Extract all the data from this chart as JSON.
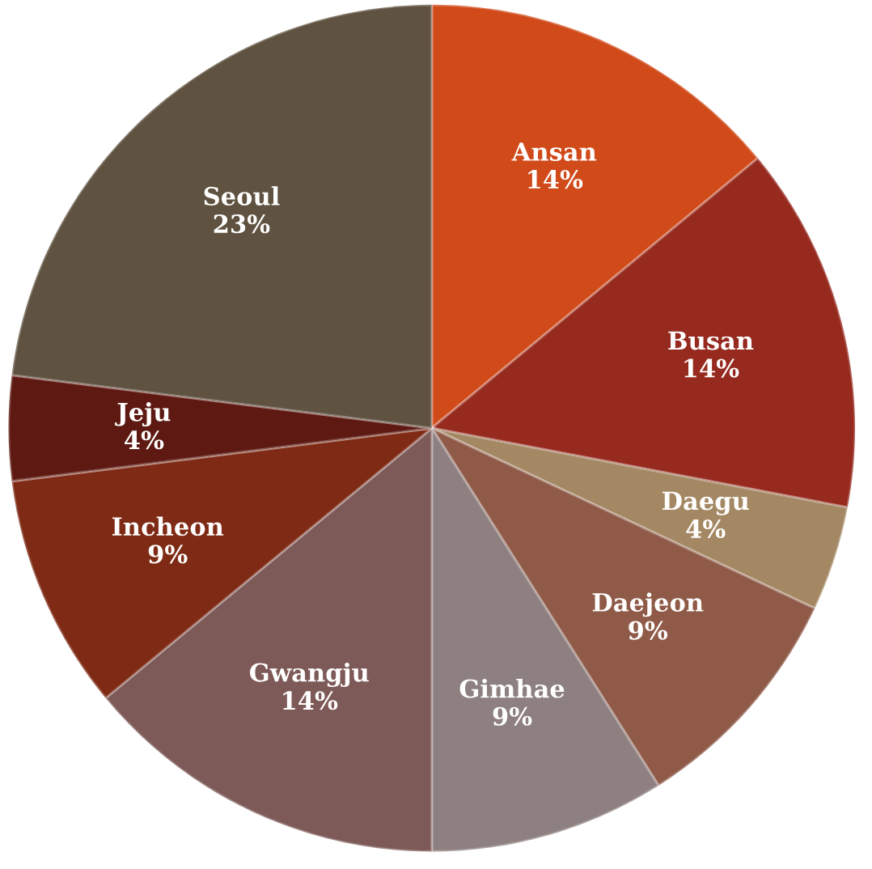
{
  "chart_data": {
    "type": "pie",
    "categories": [
      "Ansan",
      "Busan",
      "Daegu",
      "Daejeon",
      "Gimhae",
      "Gwangju",
      "Incheon",
      "Jeju",
      "Seoul"
    ],
    "values": [
      14,
      14,
      4,
      9,
      9,
      14,
      9,
      4,
      23
    ],
    "value_labels": [
      "14%",
      "14%",
      "4%",
      "9%",
      "9%",
      "14%",
      "9%",
      "4%",
      "23%"
    ],
    "colors": [
      "#d04a1a",
      "#962a1f",
      "#a48864",
      "#8f5a48",
      "#8e8080",
      "#7d5a58",
      "#7e2a14",
      "#5e1a12",
      "#5f5240"
    ]
  }
}
